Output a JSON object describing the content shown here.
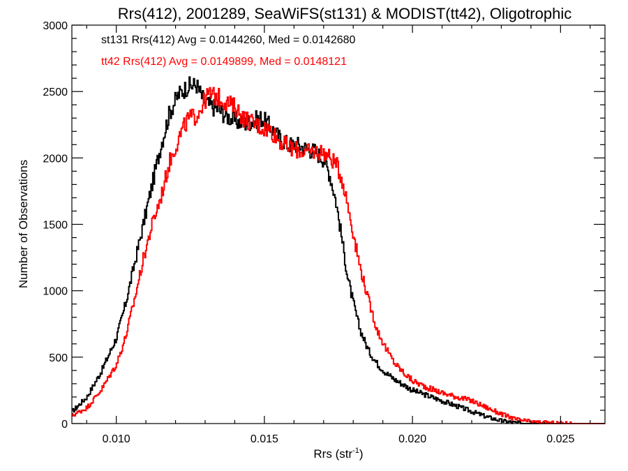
{
  "chart_data": {
    "type": "line",
    "title": "Rrs(412), 2001289, SeaWiFS(st131) & MODIST(tt42), Oligotrophic",
    "xlabel": "Rrs (str",
    "xlabel_sup": "-1",
    "xlabel_close": ")",
    "ylabel": "Number of Observations",
    "xlim": [
      0.0085,
      0.0265
    ],
    "ylim": [
      0,
      3000
    ],
    "xticks": [
      0.01,
      0.015,
      0.02,
      0.025
    ],
    "xtick_labels": [
      "0.010",
      "0.015",
      "0.020",
      "0.025"
    ],
    "yticks": [
      0,
      500,
      1000,
      1500,
      2000,
      2500,
      3000
    ],
    "ytick_labels": [
      "0",
      "500",
      "1000",
      "1500",
      "2000",
      "2500",
      "3000"
    ],
    "grid": false,
    "step": "histogram",
    "series": [
      {
        "name": "st131",
        "color": "#000000",
        "annotation": "st131 Rrs(412) Avg = 0.0144260, Med = 0.0142680",
        "x": [
          0.0085,
          0.009,
          0.0095,
          0.01,
          0.0103,
          0.0106,
          0.0109,
          0.0112,
          0.0115,
          0.0118,
          0.0121,
          0.0124,
          0.0127,
          0.0129,
          0.0131,
          0.0134,
          0.0137,
          0.014,
          0.0143,
          0.0146,
          0.0149,
          0.0152,
          0.0155,
          0.0158,
          0.0161,
          0.0164,
          0.0167,
          0.017,
          0.0172,
          0.0174,
          0.0176,
          0.0178,
          0.018,
          0.0182,
          0.0185,
          0.0188,
          0.0191,
          0.0194,
          0.0197,
          0.02,
          0.0205,
          0.021,
          0.0215,
          0.022,
          0.0225,
          0.023,
          0.0235,
          0.024,
          0.0245,
          0.025,
          0.0255,
          0.026,
          0.0265
        ],
        "y": [
          90,
          200,
          400,
          650,
          900,
          1200,
          1500,
          1800,
          2100,
          2350,
          2480,
          2540,
          2550,
          2450,
          2400,
          2370,
          2320,
          2280,
          2260,
          2280,
          2300,
          2230,
          2150,
          2100,
          2100,
          2070,
          2050,
          1990,
          1870,
          1680,
          1400,
          1100,
          900,
          720,
          550,
          450,
          380,
          330,
          290,
          250,
          210,
          170,
          130,
          90,
          50,
          20,
          5,
          2,
          0,
          0,
          0,
          0,
          0
        ]
      },
      {
        "name": "tt42",
        "color": "#ff0000",
        "annotation": "tt42 Rrs(412) Avg = 0.0149899, Med = 0.0148121",
        "x": [
          0.0085,
          0.009,
          0.0095,
          0.01,
          0.0103,
          0.0106,
          0.0109,
          0.0112,
          0.0115,
          0.0118,
          0.0121,
          0.0124,
          0.0127,
          0.0129,
          0.0131,
          0.0134,
          0.0137,
          0.014,
          0.0143,
          0.0146,
          0.0149,
          0.0152,
          0.0155,
          0.0158,
          0.0161,
          0.0164,
          0.0167,
          0.017,
          0.0172,
          0.0174,
          0.0176,
          0.0178,
          0.018,
          0.0182,
          0.0185,
          0.0188,
          0.0191,
          0.0194,
          0.0197,
          0.02,
          0.0205,
          0.021,
          0.0215,
          0.022,
          0.0225,
          0.023,
          0.0235,
          0.024,
          0.0245,
          0.025,
          0.0255,
          0.026,
          0.0265
        ],
        "y": [
          60,
          120,
          260,
          450,
          650,
          930,
          1240,
          1500,
          1710,
          1980,
          2150,
          2290,
          2320,
          2400,
          2480,
          2460,
          2420,
          2380,
          2300,
          2260,
          2230,
          2210,
          2130,
          2080,
          2060,
          2040,
          2050,
          2040,
          2000,
          1960,
          1850,
          1650,
          1420,
          1200,
          930,
          700,
          560,
          450,
          380,
          320,
          270,
          230,
          200,
          170,
          120,
          70,
          30,
          12,
          5,
          2,
          0,
          0,
          0
        ]
      }
    ]
  }
}
